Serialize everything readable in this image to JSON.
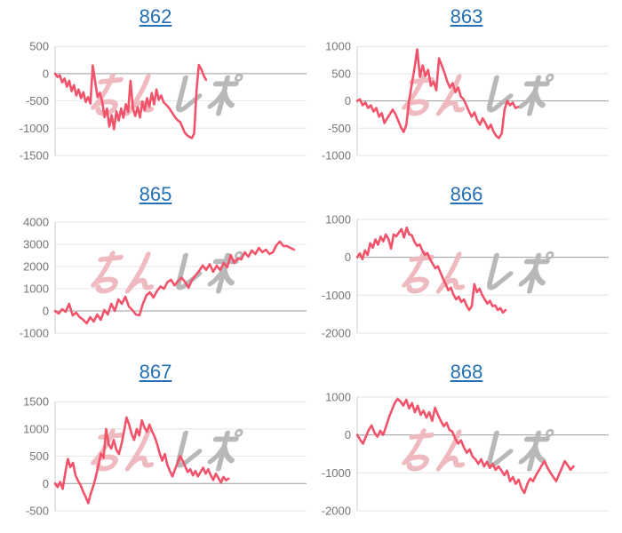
{
  "page": {
    "background": "#ffffff"
  },
  "colors": {
    "line": "#f1536b",
    "title_link": "#2470b3",
    "tick_label": "#757575",
    "gridline": "#e4e4e4",
    "zero_line": "#9b9b9b",
    "axis_line": "#cccccc",
    "watermark_pink": "#eeb7bd",
    "watermark_gray": "#b5b5b5"
  },
  "watermark": {
    "text": "みんレポ",
    "left_text": "みん",
    "right_text": "レポ"
  },
  "chart_data": [
    {
      "type": "line",
      "title": "862",
      "y_ticks": [
        500,
        0,
        -500,
        -1000,
        -1500
      ],
      "ylim": [
        -1500,
        500
      ],
      "xlabel": "",
      "ylabel": "",
      "grid": true,
      "legend": "none",
      "end_fraction": 0.6,
      "values": [
        0,
        -60,
        -30,
        -160,
        -90,
        -240,
        -130,
        -320,
        -210,
        -400,
        -290,
        -450,
        -340,
        -520,
        -430,
        -550,
        150,
        -150,
        -430,
        -350,
        -520,
        -800,
        -640,
        -970,
        -760,
        -1020,
        -690,
        -860,
        -640,
        -810,
        -560,
        -700,
        -130,
        -640,
        -775,
        -610,
        -805,
        -515,
        -675,
        -450,
        -610,
        -355,
        -565,
        -290,
        -480,
        -400,
        -520,
        -565,
        -610,
        -675,
        -740,
        -805,
        -855,
        -885,
        -980,
        -1080,
        -1130,
        -1160,
        -1180,
        -1100,
        -300,
        160,
        80,
        -30,
        -110
      ]
    },
    {
      "type": "line",
      "title": "863",
      "y_ticks": [
        1000,
        500,
        0,
        -500,
        -1000
      ],
      "ylim": [
        -1000,
        1000
      ],
      "xlabel": "",
      "ylabel": "",
      "grid": true,
      "legend": "none",
      "end_fraction": 0.64,
      "values": [
        0,
        30,
        -80,
        -30,
        -130,
        -80,
        -195,
        -130,
        -290,
        -225,
        -405,
        -320,
        -240,
        -160,
        -240,
        -355,
        -480,
        -570,
        -440,
        0,
        300,
        600,
        945,
        440,
        650,
        455,
        570,
        275,
        355,
        195,
        780,
        650,
        520,
        355,
        245,
        325,
        160,
        245,
        80,
        30,
        -80,
        -195,
        -290,
        -210,
        -355,
        -435,
        -320,
        -405,
        -515,
        -435,
        -565,
        -645,
        -680,
        -595,
        -160,
        0,
        -80,
        -30,
        -130,
        -110
      ]
    },
    {
      "type": "line",
      "title": "865",
      "y_ticks": [
        4000,
        3000,
        2000,
        1000,
        0,
        -1000
      ],
      "ylim": [
        -1000,
        4000
      ],
      "xlabel": "",
      "ylabel": "",
      "grid": true,
      "legend": "none",
      "end_fraction": 0.95,
      "values": [
        0,
        -120,
        80,
        -40,
        320,
        -200,
        -80,
        -280,
        -400,
        -560,
        -280,
        -480,
        -160,
        -400,
        40,
        -160,
        320,
        0,
        520,
        320,
        640,
        200,
        40,
        -160,
        -200,
        320,
        700,
        840,
        600,
        900,
        1100,
        1000,
        1300,
        1400,
        1150,
        1350,
        1500,
        1300,
        1040,
        1400,
        1600,
        1800,
        2050,
        1850,
        2100,
        1760,
        2040,
        1840,
        2160,
        1960,
        2520,
        2160,
        2360,
        2320,
        2640,
        2440,
        2720,
        2560,
        2840,
        2640,
        2760,
        2560,
        2640,
        2960,
        3120,
        2920,
        2920,
        2840,
        2760
      ]
    },
    {
      "type": "line",
      "title": "866",
      "y_ticks": [
        1000,
        0,
        -1000,
        -2000
      ],
      "ylim": [
        -2000,
        1000
      ],
      "xlabel": "",
      "ylabel": "",
      "grid": true,
      "legend": "none",
      "end_fraction": 0.59,
      "values": [
        0,
        100,
        -50,
        180,
        60,
        370,
        250,
        470,
        330,
        540,
        420,
        600,
        480,
        230,
        600,
        550,
        650,
        740,
        520,
        780,
        600,
        580,
        410,
        300,
        340,
        180,
        60,
        110,
        -50,
        -170,
        -290,
        -240,
        -400,
        -570,
        -710,
        -870,
        -800,
        -990,
        -1110,
        -1040,
        -1180,
        -1110,
        -1270,
        -1390,
        -1290,
        -710,
        -920,
        -830,
        -990,
        -1110,
        -1220,
        -1150,
        -1290,
        -1270,
        -1390,
        -1340,
        -1460,
        -1390
      ]
    },
    {
      "type": "line",
      "title": "867",
      "y_ticks": [
        1500,
        1000,
        500,
        0,
        -500
      ],
      "ylim": [
        -500,
        1500
      ],
      "xlabel": "",
      "ylabel": "",
      "grid": true,
      "legend": "none",
      "end_fraction": 0.69,
      "values": [
        0,
        -65,
        30,
        -100,
        200,
        450,
        300,
        380,
        150,
        50,
        -30,
        -150,
        -250,
        -360,
        -180,
        -40,
        130,
        340,
        550,
        470,
        1000,
        720,
        640,
        800,
        620,
        540,
        720,
        950,
        1210,
        1080,
        910,
        800,
        1000,
        880,
        1160,
        1030,
        950,
        1080,
        960,
        860,
        720,
        550,
        420,
        540,
        340,
        230,
        130,
        260,
        375,
        505,
        420,
        310,
        210,
        260,
        150,
        230,
        130,
        210,
        290,
        180,
        260,
        150,
        65,
        180,
        100,
        15,
        120,
        60,
        90
      ]
    },
    {
      "type": "line",
      "title": "868",
      "y_ticks": [
        1000,
        0,
        -1000,
        -2000
      ],
      "ylim": [
        -2000,
        1000
      ],
      "xlabel": "",
      "ylabel": "",
      "grid": true,
      "legend": "none",
      "end_fraction": 0.86,
      "values": [
        0,
        -120,
        -230,
        -50,
        130,
        250,
        60,
        -50,
        110,
        0,
        230,
        460,
        650,
        840,
        950,
        880,
        770,
        930,
        700,
        840,
        600,
        770,
        530,
        640,
        460,
        600,
        370,
        720,
        530,
        370,
        230,
        320,
        130,
        90,
        -100,
        -230,
        -140,
        -330,
        -470,
        -380,
        -570,
        -640,
        -760,
        -640,
        -830,
        -710,
        -870,
        -760,
        -920,
        -830,
        -940,
        -1060,
        -940,
        -1220,
        -1110,
        -1290,
        -1180,
        -1410,
        -1530,
        -1290,
        -1150,
        -1220,
        -1060,
        -940,
        -800,
        -690,
        -870,
        -990,
        -1110,
        -1220,
        -1040,
        -870,
        -690,
        -800,
        -920,
        -830
      ]
    }
  ]
}
